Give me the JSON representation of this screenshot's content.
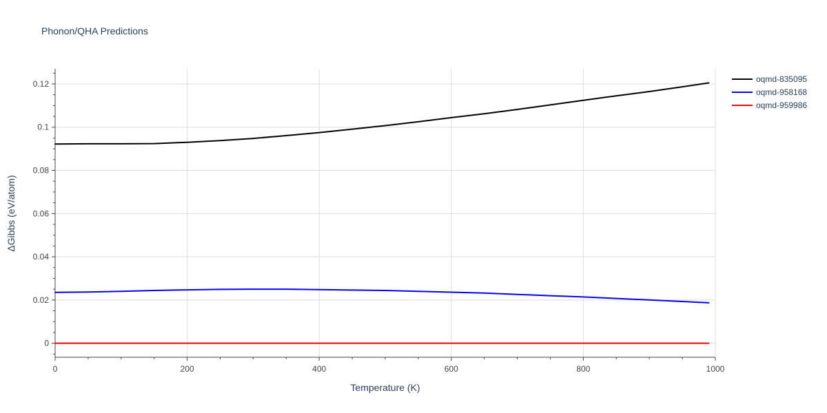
{
  "chart_data": {
    "type": "line",
    "title": "Phonon/QHA Predictions",
    "xlabel": "Temperature (K)",
    "ylabel": "ΔGibbs (eV/atom)",
    "xlim": [
      0,
      1000
    ],
    "ylim": [
      -0.0065,
      0.127
    ],
    "x_ticks": [
      0,
      200,
      400,
      600,
      800,
      1000
    ],
    "x_tick_labels": [
      "0",
      "200",
      "400",
      "600",
      "800",
      "1000"
    ],
    "y_ticks": [
      0,
      0.02,
      0.04,
      0.06,
      0.08,
      0.1,
      0.12
    ],
    "y_tick_labels": [
      "0",
      "0.02",
      "0.04",
      "0.06",
      "0.08",
      "0.1",
      "0.12"
    ],
    "grid": true,
    "legend_position": "top-right",
    "series": [
      {
        "name": "oqmd-835095",
        "color": "#000000",
        "x": [
          0,
          50,
          100,
          150,
          200,
          250,
          300,
          350,
          400,
          450,
          500,
          550,
          600,
          650,
          700,
          750,
          800,
          850,
          900,
          950,
          990
        ],
        "y": [
          0.0922,
          0.0923,
          0.0923,
          0.0924,
          0.093,
          0.0938,
          0.0948,
          0.0961,
          0.0975,
          0.0991,
          0.1007,
          0.1025,
          0.1044,
          0.1062,
          0.1082,
          0.1103,
          0.1124,
          0.1145,
          0.1165,
          0.1187,
          0.1205
        ]
      },
      {
        "name": "oqmd-958168",
        "color": "#0000ff",
        "x": [
          0,
          50,
          100,
          150,
          200,
          250,
          300,
          350,
          400,
          450,
          500,
          550,
          600,
          650,
          700,
          750,
          800,
          850,
          900,
          950,
          990
        ],
        "y": [
          0.0235,
          0.0237,
          0.024,
          0.0244,
          0.0247,
          0.0249,
          0.025,
          0.025,
          0.0248,
          0.0246,
          0.0244,
          0.024,
          0.0236,
          0.0232,
          0.0226,
          0.022,
          0.0214,
          0.0207,
          0.02,
          0.0193,
          0.0187
        ]
      },
      {
        "name": "oqmd-959986",
        "color": "#ff0000",
        "x": [
          0,
          990
        ],
        "y": [
          0,
          0
        ]
      }
    ]
  }
}
